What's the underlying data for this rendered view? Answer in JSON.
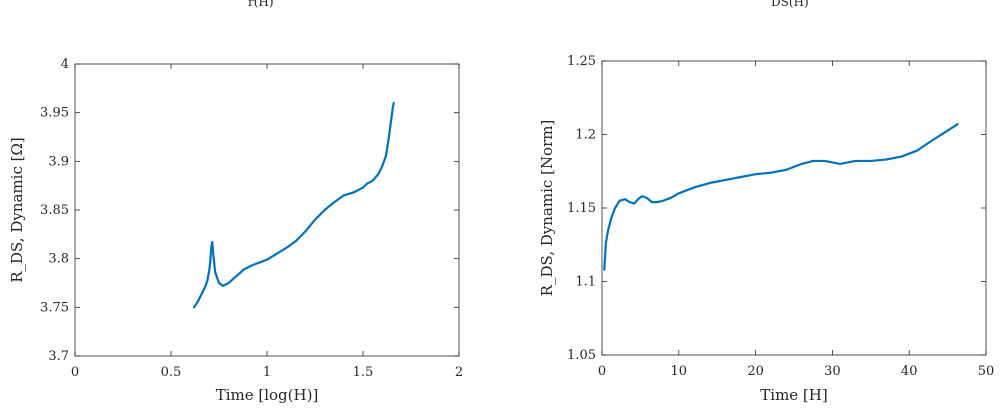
{
  "top_fragments": [
    {
      "text": "r(H)"
    },
    {
      "text": "DS(H)"
    }
  ],
  "chart_data": [
    {
      "type": "line",
      "xlabel": "Time [log(H)]",
      "ylabel": "R_DS, Dynamic [Ω]",
      "xlim": [
        0,
        2
      ],
      "ylim": [
        3.7,
        4
      ],
      "xticks": [
        0,
        0.5,
        1,
        1.5,
        2
      ],
      "xtick_labels": [
        "0",
        "0.5",
        "1",
        "1.5",
        "2"
      ],
      "yticks": [
        3.7,
        3.75,
        3.8,
        3.85,
        3.9,
        3.95,
        4
      ],
      "ytick_labels": [
        "3.7",
        "3.75",
        "3.8",
        "3.85",
        "3.9",
        "3.95",
        "4"
      ],
      "grid": false,
      "series": [
        {
          "color": "#0072BD",
          "x": [
            0.62,
            0.64,
            0.66,
            0.68,
            0.69,
            0.7,
            0.705,
            0.71,
            0.715,
            0.72,
            0.73,
            0.75,
            0.77,
            0.8,
            0.84,
            0.88,
            0.92,
            0.96,
            1.0,
            1.05,
            1.1,
            1.15,
            1.2,
            1.25,
            1.3,
            1.35,
            1.4,
            1.45,
            1.5,
            1.52,
            1.55,
            1.58,
            1.6,
            1.62,
            1.635,
            1.645,
            1.65,
            1.655,
            1.66
          ],
          "y": [
            3.75,
            3.756,
            3.764,
            3.772,
            3.778,
            3.789,
            3.798,
            3.812,
            3.817,
            3.805,
            3.786,
            3.775,
            3.772,
            3.775,
            3.782,
            3.789,
            3.793,
            3.796,
            3.799,
            3.805,
            3.811,
            3.818,
            3.828,
            3.84,
            3.85,
            3.858,
            3.865,
            3.868,
            3.873,
            3.877,
            3.88,
            3.887,
            3.895,
            3.906,
            3.925,
            3.94,
            3.947,
            3.955,
            3.96
          ]
        }
      ]
    },
    {
      "type": "line",
      "xlabel": "Time [H]",
      "ylabel": "R_DS, Dynamic [Norm]",
      "xlim": [
        0,
        50
      ],
      "ylim": [
        1.05,
        1.25
      ],
      "xticks": [
        0,
        10,
        20,
        30,
        40,
        50
      ],
      "xtick_labels": [
        "0",
        "10",
        "20",
        "30",
        "40",
        "50"
      ],
      "yticks": [
        1.05,
        1.1,
        1.15,
        1.2,
        1.25
      ],
      "ytick_labels": [
        "1.05",
        "1.1",
        "1.15",
        "1.2",
        "1.25"
      ],
      "grid": false,
      "series": [
        {
          "color": "#0072BD",
          "x": [
            0.3,
            0.5,
            0.8,
            1.2,
            1.7,
            2.3,
            3.0,
            3.6,
            4.2,
            4.7,
            5.2,
            5.8,
            6.5,
            7.2,
            8.0,
            9.0,
            10.0,
            12.0,
            14.0,
            16.0,
            18.0,
            20.0,
            22.0,
            24.0,
            26.0,
            27.5,
            29.0,
            31.0,
            33.0,
            35.0,
            37.0,
            39.0,
            41.0,
            43.0,
            44.5,
            46.3
          ],
          "y": [
            1.108,
            1.126,
            1.135,
            1.143,
            1.15,
            1.155,
            1.156,
            1.154,
            1.153,
            1.156,
            1.158,
            1.157,
            1.154,
            1.154,
            1.155,
            1.157,
            1.16,
            1.164,
            1.167,
            1.169,
            1.171,
            1.173,
            1.174,
            1.176,
            1.18,
            1.182,
            1.182,
            1.18,
            1.182,
            1.182,
            1.183,
            1.185,
            1.189,
            1.196,
            1.201,
            1.207
          ]
        }
      ]
    }
  ]
}
